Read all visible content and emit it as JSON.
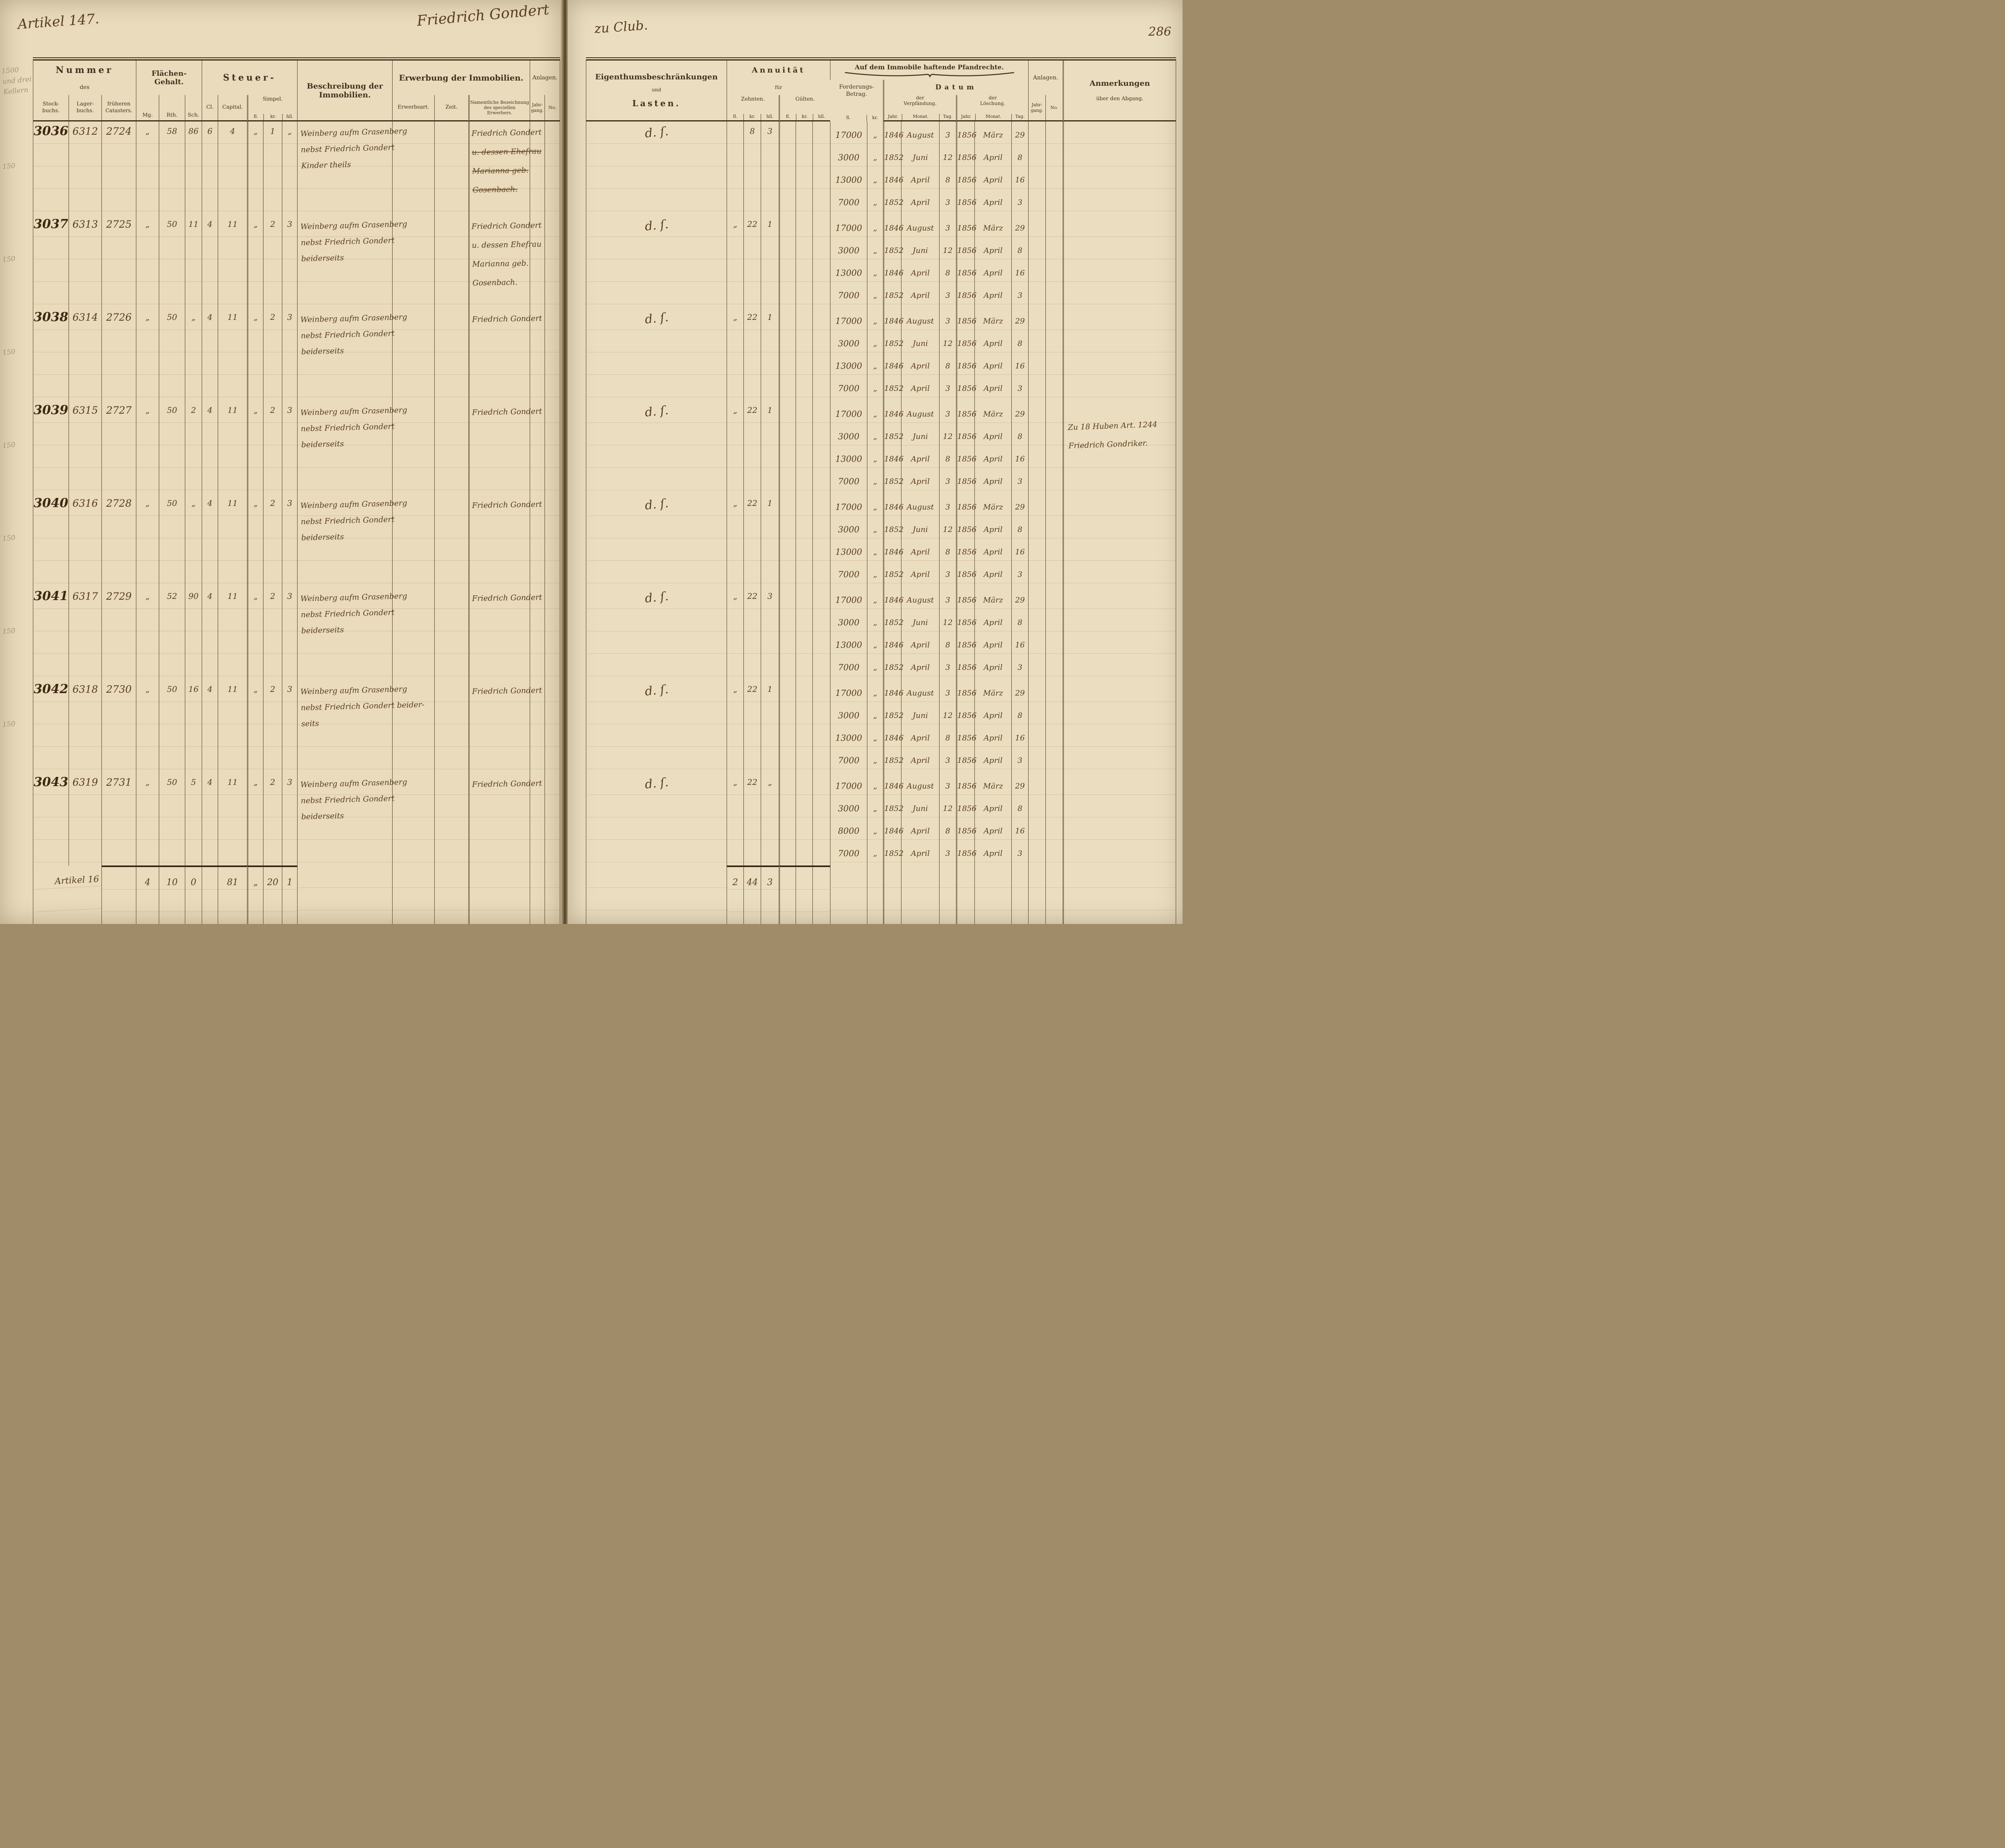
{
  "page": {
    "artikel": "Artikel 147.",
    "owner_left": "Friedrich Gondert",
    "owner_right": "zu Club.",
    "page_number": "286"
  },
  "left_header": {
    "nummer": {
      "title": "Nummer",
      "sub": "des",
      "cols": [
        "Stock-\nbuchs.",
        "Lager-\nbuchs.",
        "früheren\nCatasters."
      ]
    },
    "flaechen": {
      "title": "Flächen-",
      "title2": "Gehalt.",
      "cols": [
        "Mg.",
        "Rth.",
        "Sch."
      ]
    },
    "steuer": {
      "title": "Steuer-",
      "cl": "Cl.",
      "capital": "Capital.",
      "simpel": "Simpel.",
      "units": [
        "fl.",
        "kr.",
        "hll."
      ]
    },
    "beschreibung": "Beschreibung der Immobilien.",
    "erwerbung": {
      "title": "Erwerbung der Immobilien.",
      "cols": [
        "Erwerbsart.",
        "Zeit.",
        "Namentliche Bezeichnung\ndes speciellen\nErwerbers."
      ]
    },
    "anlagen": {
      "title": "Anlagen.",
      "cols": [
        "Jahr-\ngang.",
        "No."
      ]
    }
  },
  "right_header": {
    "lasten": {
      "line1": "Eigenthumsbeschränkungen",
      "line2": "und",
      "line3": "Lasten."
    },
    "annuitaet": {
      "title": "Annuität",
      "sub": "für",
      "zehnten": "Zehnten.",
      "guelten": "Gülten.",
      "units": [
        "fl.",
        "kr.",
        "hll."
      ]
    },
    "pfandrechte": {
      "title": "Auf dem Immobile haftende Pfandrechte.",
      "forderung": "Forderungs-\nBetrag.",
      "forderung_units": [
        "fl.",
        "kr."
      ],
      "datum": "Datum",
      "verpfaendung": "der\nVerpfändung.",
      "loeschung": "der\nLöschung.",
      "date_units": [
        "Jahr.",
        "Monat.",
        "Tag."
      ]
    },
    "anlagen": {
      "title": "Anlagen.",
      "cols": [
        "Jahr-\ngang.",
        "No."
      ]
    },
    "anmerkungen": {
      "line1": "Anmerkungen",
      "line2": "über den Abgang."
    }
  },
  "rows": [
    {
      "margin": "1500\nund drei\nKellern",
      "stockbuch": "3036",
      "lagerbuch": "6312",
      "cataster": "2724",
      "mg": "„",
      "rth": "58",
      "sch": "86",
      "cl": "6",
      "capital": "4",
      "s_fl": "„",
      "s_kr": "1",
      "s_hll": "„",
      "beschreibung": [
        "Weinberg aufm Grasenberg",
        "nebst Friedrich Gondert",
        "Kinder theils"
      ],
      "erwerber": [
        "Friedrich Gondert",
        "u. dessen Ehefrau",
        "Marianna geb.",
        "Gosenbach."
      ],
      "erwerber_struck": [
        1,
        2,
        3
      ],
      "lasten": "d. ſ.",
      "z_fl": "",
      "z_kr": "8",
      "z_hll": "3",
      "pfand": [
        {
          "betrag": "17000",
          "kr": "„",
          "vj": "1846",
          "vm": "August",
          "vt": "3",
          "lj": "1856",
          "lm": "März",
          "lt": "29"
        },
        {
          "betrag": "3000",
          "kr": "„",
          "vj": "1852",
          "vm": "Juni",
          "vt": "12",
          "lj": "1856",
          "lm": "April",
          "lt": "8"
        },
        {
          "betrag": "13000",
          "kr": "„",
          "vj": "1846",
          "vm": "April",
          "vt": "8",
          "lj": "1856",
          "lm": "April",
          "lt": "16"
        },
        {
          "betrag": "7000",
          "kr": "„",
          "vj": "1852",
          "vm": "April",
          "vt": "3",
          "lj": "1856",
          "lm": "April",
          "lt": "3"
        }
      ],
      "anmerkung": []
    },
    {
      "margin": "150",
      "stockbuch": "3037",
      "lagerbuch": "6313",
      "cataster": "2725",
      "mg": "„",
      "rth": "50",
      "sch": "11",
      "cl": "4",
      "capital": "11",
      "s_fl": "„",
      "s_kr": "2",
      "s_hll": "3",
      "beschreibung": [
        "Weinberg aufm Grasenberg",
        "nebst Friedrich Gondert",
        "beiderseits"
      ],
      "erwerber": [
        "Friedrich Gondert",
        "u. dessen Ehefrau",
        "Marianna geb.",
        "Gosenbach."
      ],
      "erwerber_struck": [],
      "lasten": "d. ſ.",
      "z_fl": "„",
      "z_kr": "22",
      "z_hll": "1",
      "pfand": [
        {
          "betrag": "17000",
          "kr": "„",
          "vj": "1846",
          "vm": "August",
          "vt": "3",
          "lj": "1856",
          "lm": "März",
          "lt": "29"
        },
        {
          "betrag": "3000",
          "kr": "„",
          "vj": "1852",
          "vm": "Juni",
          "vt": "12",
          "lj": "1856",
          "lm": "April",
          "lt": "8"
        },
        {
          "betrag": "13000",
          "kr": "„",
          "vj": "1846",
          "vm": "April",
          "vt": "8",
          "lj": "1856",
          "lm": "April",
          "lt": "16"
        },
        {
          "betrag": "7000",
          "kr": "„",
          "vj": "1852",
          "vm": "April",
          "vt": "3",
          "lj": "1856",
          "lm": "April",
          "lt": "3"
        }
      ],
      "anmerkung": []
    },
    {
      "margin": "150",
      "stockbuch": "3038",
      "lagerbuch": "6314",
      "cataster": "2726",
      "mg": "„",
      "rth": "50",
      "sch": "„",
      "cl": "4",
      "capital": "11",
      "s_fl": "„",
      "s_kr": "2",
      "s_hll": "3",
      "beschreibung": [
        "Weinberg aufm Grasenberg",
        "nebst Friedrich Gondert",
        "beiderseits"
      ],
      "erwerber": [
        "Friedrich Gondert"
      ],
      "erwerber_struck": [],
      "lasten": "d. ſ.",
      "z_fl": "„",
      "z_kr": "22",
      "z_hll": "1",
      "pfand": [
        {
          "betrag": "17000",
          "kr": "„",
          "vj": "1846",
          "vm": "August",
          "vt": "3",
          "lj": "1856",
          "lm": "März",
          "lt": "29"
        },
        {
          "betrag": "3000",
          "kr": "„",
          "vj": "1852",
          "vm": "Juni",
          "vt": "12",
          "lj": "1856",
          "lm": "April",
          "lt": "8"
        },
        {
          "betrag": "13000",
          "kr": "„",
          "vj": "1846",
          "vm": "April",
          "vt": "8",
          "lj": "1856",
          "lm": "April",
          "lt": "16"
        },
        {
          "betrag": "7000",
          "kr": "„",
          "vj": "1852",
          "vm": "April",
          "vt": "3",
          "lj": "1856",
          "lm": "April",
          "lt": "3"
        }
      ],
      "anmerkung": []
    },
    {
      "margin": "150",
      "stockbuch": "3039",
      "lagerbuch": "6315",
      "cataster": "2727",
      "mg": "„",
      "rth": "50",
      "sch": "2",
      "cl": "4",
      "capital": "11",
      "s_fl": "„",
      "s_kr": "2",
      "s_hll": "3",
      "beschreibung": [
        "Weinberg aufm Grasenberg",
        "nebst Friedrich Gondert",
        "beiderseits"
      ],
      "erwerber": [
        "Friedrich Gondert"
      ],
      "erwerber_struck": [],
      "lasten": "d. ſ.",
      "z_fl": "„",
      "z_kr": "22",
      "z_hll": "1",
      "pfand": [
        {
          "betrag": "17000",
          "kr": "„",
          "vj": "1846",
          "vm": "August",
          "vt": "3",
          "lj": "1856",
          "lm": "März",
          "lt": "29"
        },
        {
          "betrag": "3000",
          "kr": "„",
          "vj": "1852",
          "vm": "Juni",
          "vt": "12",
          "lj": "1856",
          "lm": "April",
          "lt": "8"
        },
        {
          "betrag": "13000",
          "kr": "„",
          "vj": "1846",
          "vm": "April",
          "vt": "8",
          "lj": "1856",
          "lm": "April",
          "lt": "16"
        },
        {
          "betrag": "7000",
          "kr": "„",
          "vj": "1852",
          "vm": "April",
          "vt": "3",
          "lj": "1856",
          "lm": "April",
          "lt": "3"
        }
      ],
      "anmerkung": [
        "Zu 18 Huben Art. 1244",
        "Friedrich Gondriker."
      ]
    },
    {
      "margin": "150",
      "stockbuch": "3040",
      "lagerbuch": "6316",
      "cataster": "2728",
      "mg": "„",
      "rth": "50",
      "sch": "„",
      "cl": "4",
      "capital": "11",
      "s_fl": "„",
      "s_kr": "2",
      "s_hll": "3",
      "beschreibung": [
        "Weinberg aufm Grasenberg",
        "nebst Friedrich Gondert",
        "beiderseits"
      ],
      "erwerber": [
        "Friedrich Gondert"
      ],
      "erwerber_struck": [],
      "lasten": "d. ſ.",
      "z_fl": "„",
      "z_kr": "22",
      "z_hll": "1",
      "pfand": [
        {
          "betrag": "17000",
          "kr": "„",
          "vj": "1846",
          "vm": "August",
          "vt": "3",
          "lj": "1856",
          "lm": "März",
          "lt": "29"
        },
        {
          "betrag": "3000",
          "kr": "„",
          "vj": "1852",
          "vm": "Juni",
          "vt": "12",
          "lj": "1856",
          "lm": "April",
          "lt": "8"
        },
        {
          "betrag": "13000",
          "kr": "„",
          "vj": "1846",
          "vm": "April",
          "vt": "8",
          "lj": "1856",
          "lm": "April",
          "lt": "16"
        },
        {
          "betrag": "7000",
          "kr": "„",
          "vj": "1852",
          "vm": "April",
          "vt": "3",
          "lj": "1856",
          "lm": "April",
          "lt": "3"
        }
      ],
      "anmerkung": []
    },
    {
      "margin": "150",
      "stockbuch": "3041",
      "lagerbuch": "6317",
      "cataster": "2729",
      "mg": "„",
      "rth": "52",
      "sch": "90",
      "cl": "4",
      "capital": "11",
      "s_fl": "„",
      "s_kr": "2",
      "s_hll": "3",
      "beschreibung": [
        "Weinberg aufm Grasenberg",
        "nebst Friedrich Gondert",
        "beiderseits"
      ],
      "erwerber": [
        "Friedrich Gondert"
      ],
      "erwerber_struck": [],
      "lasten": "d. ſ.",
      "z_fl": "„",
      "z_kr": "22",
      "z_hll": "3",
      "pfand": [
        {
          "betrag": "17000",
          "kr": "„",
          "vj": "1846",
          "vm": "August",
          "vt": "3",
          "lj": "1856",
          "lm": "März",
          "lt": "29"
        },
        {
          "betrag": "3000",
          "kr": "„",
          "vj": "1852",
          "vm": "Juni",
          "vt": "12",
          "lj": "1856",
          "lm": "April",
          "lt": "8"
        },
        {
          "betrag": "13000",
          "kr": "„",
          "vj": "1846",
          "vm": "April",
          "vt": "8",
          "lj": "1856",
          "lm": "April",
          "lt": "16"
        },
        {
          "betrag": "7000",
          "kr": "„",
          "vj": "1852",
          "vm": "April",
          "vt": "3",
          "lj": "1856",
          "lm": "April",
          "lt": "3"
        }
      ],
      "anmerkung": []
    },
    {
      "margin": "150",
      "stockbuch": "3042",
      "lagerbuch": "6318",
      "cataster": "2730",
      "mg": "„",
      "rth": "50",
      "sch": "16",
      "cl": "4",
      "capital": "11",
      "s_fl": "„",
      "s_kr": "2",
      "s_hll": "3",
      "beschreibung": [
        "Weinberg aufm Grasenberg",
        "nebst Friedrich Gondert beider-",
        "seits"
      ],
      "erwerber": [
        "Friedrich Gondert"
      ],
      "erwerber_struck": [],
      "lasten": "d. ſ.",
      "z_fl": "„",
      "z_kr": "22",
      "z_hll": "1",
      "pfand": [
        {
          "betrag": "17000",
          "kr": "„",
          "vj": "1846",
          "vm": "August",
          "vt": "3",
          "lj": "1856",
          "lm": "März",
          "lt": "29"
        },
        {
          "betrag": "3000",
          "kr": "„",
          "vj": "1852",
          "vm": "Juni",
          "vt": "12",
          "lj": "1856",
          "lm": "April",
          "lt": "8"
        },
        {
          "betrag": "13000",
          "kr": "„",
          "vj": "1846",
          "vm": "April",
          "vt": "8",
          "lj": "1856",
          "lm": "April",
          "lt": "16"
        },
        {
          "betrag": "7000",
          "kr": "„",
          "vj": "1852",
          "vm": "April",
          "vt": "3",
          "lj": "1856",
          "lm": "April",
          "lt": "3"
        }
      ],
      "anmerkung": []
    },
    {
      "margin": "150",
      "stockbuch": "3043",
      "lagerbuch": "6319",
      "cataster": "2731",
      "mg": "„",
      "rth": "50",
      "sch": "5",
      "cl": "4",
      "capital": "11",
      "s_fl": "„",
      "s_kr": "2",
      "s_hll": "3",
      "beschreibung": [
        "Weinberg aufm Grasenberg",
        "nebst Friedrich Gondert",
        "beiderseits"
      ],
      "erwerber": [
        "Friedrich Gondert"
      ],
      "erwerber_struck": [],
      "lasten": "d. ſ.",
      "z_fl": "„",
      "z_kr": "22",
      "z_hll": "„",
      "pfand": [
        {
          "betrag": "17000",
          "kr": "„",
          "vj": "1846",
          "vm": "August",
          "vt": "3",
          "lj": "1856",
          "lm": "März",
          "lt": "29"
        },
        {
          "betrag": "3000",
          "kr": "„",
          "vj": "1852",
          "vm": "Juni",
          "vt": "12",
          "lj": "1856",
          "lm": "April",
          "lt": "8"
        },
        {
          "betrag": "8000",
          "kr": "„",
          "vj": "1846",
          "vm": "April",
          "vt": "8",
          "lj": "1856",
          "lm": "April",
          "lt": "16"
        },
        {
          "betrag": "7000",
          "kr": "„",
          "vj": "1852",
          "vm": "April",
          "vt": "3",
          "lj": "1856",
          "lm": "April",
          "lt": "3"
        }
      ],
      "anmerkung": []
    }
  ],
  "totals": {
    "label": "Artikel 16",
    "mg": "4",
    "rth": "10",
    "sch": "0",
    "capital": "81",
    "s_fl": "„",
    "s_kr": "20",
    "s_hll": "1",
    "z_fl": "2",
    "z_kr": "44",
    "z_hll": "3"
  }
}
